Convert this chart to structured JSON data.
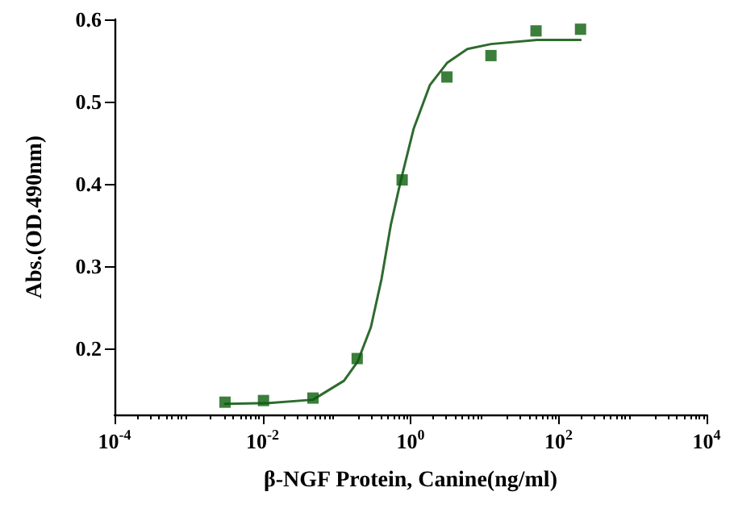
{
  "chart_data": {
    "type": "scatter",
    "xlabel": "β-NGF Protein, Canine(ng/ml)",
    "ylabel": "Abs.(OD.490nm)",
    "log": "x",
    "grid": false,
    "xlim": [
      0.0001,
      10000
    ],
    "xticks": [
      {
        "value": 0.0001,
        "label": "10$^{-4}$"
      },
      {
        "value": 0.01,
        "label": "10$^{-2}$"
      },
      {
        "value": 1,
        "label": "10$^{0}$"
      },
      {
        "value": 100,
        "label": "10$^{2}$"
      },
      {
        "value": 10000,
        "label": "10$^{4}$"
      }
    ],
    "ylim": [
      0.12,
      0.6
    ],
    "yticks": [
      0.2,
      0.3,
      0.4,
      0.5,
      0.6
    ],
    "series": [
      {
        "color": "#0b5e0b",
        "marker": "square",
        "x": [
          0.00311,
          0.0103,
          0.048,
          0.19,
          0.77,
          3.1,
          12.2,
          49.6,
          198
        ],
        "values": [
          0.135,
          0.137,
          0.14,
          0.188,
          0.405,
          0.53,
          0.556,
          0.586,
          0.588
        ]
      },
      {
        "type": "line",
        "color": "#2e6b2e",
        "marker": "none",
        "line_style": "solid",
        "x": [
          0.00311,
          0.0122,
          0.048,
          0.126,
          0.192,
          0.291,
          0.406,
          0.54,
          0.728,
          1.1,
          1.82,
          3.11,
          5.86,
          12.2,
          51.3,
          198
        ],
        "values": [
          0.133,
          0.134,
          0.138,
          0.161,
          0.184,
          0.226,
          0.285,
          0.35,
          0.402,
          0.467,
          0.52,
          0.547,
          0.564,
          0.57,
          0.575,
          0.575
        ]
      }
    ]
  }
}
